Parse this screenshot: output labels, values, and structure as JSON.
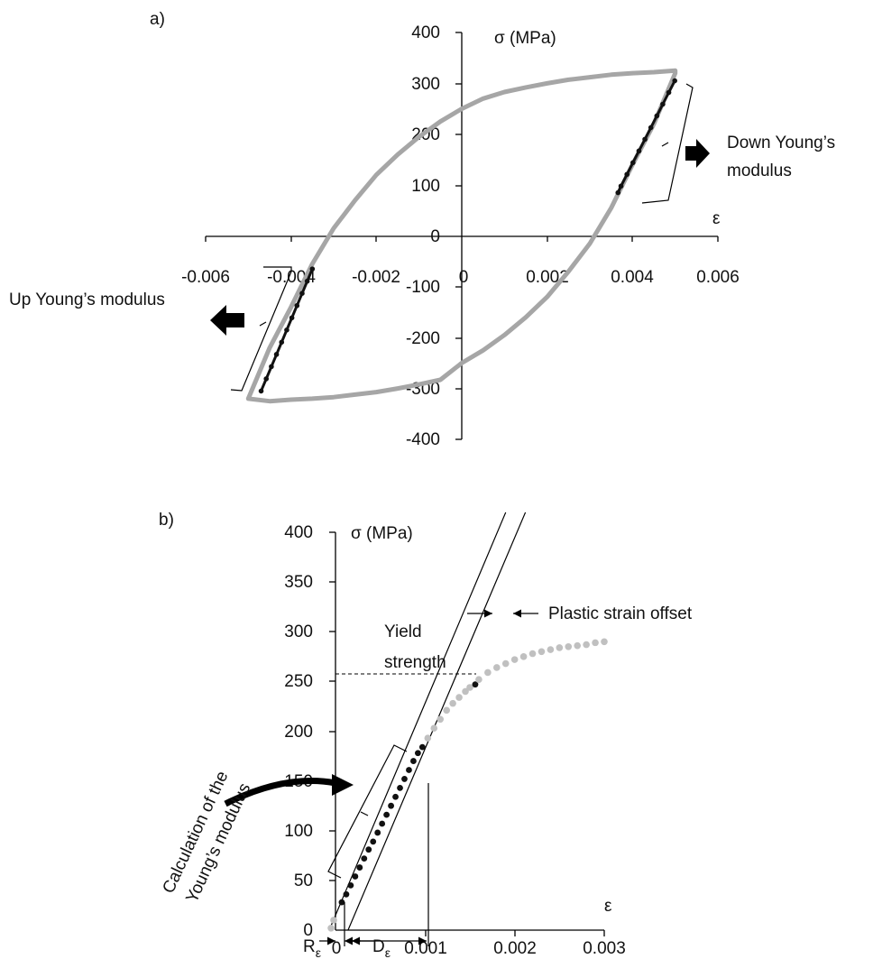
{
  "chart_data": [
    {
      "panel": "a)",
      "type": "scatter",
      "ylabel": "σ (MPa)",
      "xlabel": "ε",
      "xlim": [
        -0.006,
        0.006
      ],
      "ylim": [
        -400,
        400
      ],
      "x_ticks": [
        "-0.006",
        "-0.004",
        "-0.002",
        "0",
        "0.002",
        "0.004",
        "0.006"
      ],
      "y_ticks": [
        "400",
        "300",
        "200",
        "100",
        "0",
        "-100",
        "-200",
        "-300",
        "-400"
      ],
      "annotations": {
        "down": [
          "Down Young’s",
          "modulus"
        ],
        "up": "Up Young’s modulus"
      },
      "colors": {
        "curve": "#a6a6a6",
        "modulus": "#111111"
      },
      "series": [
        {
          "role": "hysteresis-loop",
          "x": [
            0.005,
            0.0045,
            0.004,
            0.0035,
            0.003,
            0.0025,
            0.002,
            0.0015,
            0.001,
            0.0005,
            0,
            -0.0005,
            -0.001,
            -0.0015,
            -0.002,
            -0.0025,
            -0.003,
            -0.0035,
            -0.004,
            -0.0045,
            -0.005,
            -0.0045,
            -0.004,
            -0.0035,
            -0.003,
            -0.0025,
            -0.002,
            -0.0015,
            -0.001,
            -0.0005,
            0,
            0.0005,
            0.001,
            0.0015,
            0.002,
            0.0025,
            0.003,
            0.0035,
            0.004,
            0.0045,
            0.005
          ],
          "y": [
            325,
            322,
            320,
            317,
            312,
            307,
            300,
            292,
            283,
            270,
            250,
            225,
            195,
            160,
            120,
            70,
            15,
            -55,
            -140,
            -220,
            -320,
            -325,
            -322,
            -320,
            -317,
            -312,
            -307,
            -300,
            -292,
            -283,
            -250,
            -225,
            -195,
            -160,
            -120,
            -70,
            -15,
            55,
            140,
            220,
            320
          ]
        },
        {
          "role": "down-modulus-points",
          "x": [
            0.00499,
            0.00485,
            0.00471,
            0.00457,
            0.00443,
            0.00429,
            0.00415,
            0.00401,
            0.00387,
            0.00373,
            0.00366
          ],
          "y": [
            305,
            282,
            259,
            236,
            213,
            190,
            167,
            144,
            121,
            98,
            85
          ]
        },
        {
          "role": "up-modulus-points",
          "x": [
            -0.0047,
            -0.00458,
            -0.00446,
            -0.00434,
            -0.00422,
            -0.0041,
            -0.00398,
            -0.00386,
            -0.00374,
            -0.00362,
            -0.0035
          ],
          "y": [
            -305,
            -281,
            -257,
            -233,
            -209,
            -185,
            -161,
            -137,
            -113,
            -89,
            -65
          ]
        }
      ]
    },
    {
      "panel": "b)",
      "type": "scatter",
      "ylabel": "σ (MPa)",
      "xlabel": "ε",
      "xlim": [
        0,
        0.003
      ],
      "ylim": [
        0,
        400
      ],
      "x_ticks": [
        "0",
        "0.001",
        "0.002",
        "0.003"
      ],
      "y_ticks": [
        "400",
        "350",
        "300",
        "250",
        "200",
        "150",
        "100",
        "50",
        "0"
      ],
      "annotations": {
        "yield": [
          "Yield",
          "strength"
        ],
        "offset": "Plastic strain offset",
        "calc": [
          "Calculation of the",
          "Young’s modulus"
        ],
        "r_main": "R",
        "r_sub": "ε",
        "d_main": "D",
        "d_sub": "ε"
      },
      "yield_strength_mpa": 247,
      "colors": {
        "curve": "#c0c0c0",
        "modulus": "#111111"
      },
      "series": [
        {
          "role": "gray-start",
          "x": [
            -5e-05,
            -2e-05
          ],
          "y": [
            2,
            10
          ]
        },
        {
          "role": "young-modulus-points",
          "x": [
            7e-05,
            0.00012,
            0.00017,
            0.00022,
            0.00027,
            0.00032,
            0.00037,
            0.00042,
            0.00047,
            0.00052,
            0.00057,
            0.00062,
            0.00067,
            0.00072,
            0.00077,
            0.00082,
            0.00087,
            0.00092,
            0.00097
          ],
          "y": [
            28,
            36,
            45,
            54,
            63,
            72,
            81,
            89,
            98,
            107,
            116,
            125,
            134,
            143,
            152,
            161,
            170,
            178,
            184
          ]
        },
        {
          "role": "gray-continuation",
          "x": [
            0.00103,
            0.0011,
            0.00117,
            0.00124,
            0.00131,
            0.00138,
            0.00145,
            0.0015
          ],
          "y": [
            193,
            203,
            212,
            221,
            228,
            234,
            240,
            244
          ]
        },
        {
          "role": "yield-point",
          "x": [
            0.00156
          ],
          "y": [
            247
          ]
        },
        {
          "role": "gray-plateau",
          "x": [
            0.0016,
            0.0017,
            0.0018,
            0.0019,
            0.002,
            0.0021,
            0.0022,
            0.0023,
            0.0024,
            0.0025,
            0.0026,
            0.0027,
            0.0028,
            0.0029,
            0.003
          ],
          "y": [
            252,
            259,
            264,
            268,
            272,
            275,
            278,
            280,
            282,
            284,
            285,
            286,
            287,
            289,
            290
          ]
        }
      ],
      "reference_lines": [
        {
          "role": "elastic-line",
          "x1": -7e-05,
          "y1": 0,
          "x2": 0.0019,
          "y2": 420
        },
        {
          "role": "offset-line",
          "x1": 0.00014,
          "y1": 0,
          "x2": 0.00212,
          "y2": 420
        }
      ]
    }
  ]
}
